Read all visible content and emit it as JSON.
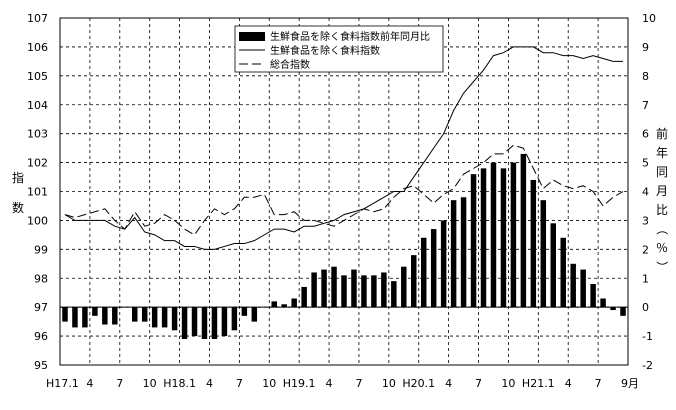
{
  "chart_data": {
    "type": "bar+line",
    "title": "",
    "y_left": {
      "label": "指数",
      "range": [
        95,
        107
      ],
      "ticks": [
        "95",
        "96",
        "97",
        "98",
        "99",
        "100",
        "101",
        "102",
        "103",
        "104",
        "105",
        "106",
        "107"
      ]
    },
    "y_right": {
      "label": "前年同月比（％）",
      "range": [
        -2,
        10
      ],
      "ticks": [
        "-2",
        "-1",
        "0",
        "1",
        "2",
        "3",
        "4",
        "5",
        "6",
        "7",
        "8",
        "9",
        "10"
      ]
    },
    "x_ticks": [
      "H17.1",
      "4",
      "7",
      "10",
      "H18.1",
      "4",
      "7",
      "10",
      "H19.1",
      "4",
      "7",
      "10",
      "H20.1",
      "4",
      "7",
      "10",
      "H21.1",
      "4",
      "7",
      "9月"
    ],
    "grid": true,
    "legend_position": "top-center",
    "series": [
      {
        "name": "生鮮食品を除く食料指数前年同月比",
        "type": "bar",
        "axis": "right",
        "values": [
          -0.5,
          -0.7,
          -0.7,
          -0.3,
          -0.6,
          -0.6,
          0,
          -0.5,
          -0.5,
          -0.7,
          -0.7,
          -0.8,
          -1.1,
          -1.0,
          -1.1,
          -1.1,
          -1.0,
          -0.8,
          -0.3,
          -0.5,
          0,
          0.2,
          0.1,
          0.3,
          0.7,
          1.2,
          1.3,
          1.4,
          1.1,
          1.3,
          1.1,
          1.1,
          1.2,
          0.9,
          1.4,
          1.8,
          2.4,
          2.7,
          3.0,
          3.7,
          3.8,
          4.6,
          4.8,
          5.0,
          4.8,
          5.0,
          5.3,
          4.4,
          3.7,
          2.9,
          2.4,
          1.5,
          1.3,
          0.8,
          0.3,
          -0.1,
          -0.3
        ]
      },
      {
        "name": "生鮮食品を除く食料指数",
        "type": "line",
        "axis": "left",
        "values": [
          100.2,
          100.0,
          100.0,
          100.0,
          100.0,
          99.8,
          99.7,
          100.1,
          99.6,
          99.5,
          99.3,
          99.3,
          99.1,
          99.1,
          99.0,
          99.0,
          99.1,
          99.2,
          99.2,
          99.3,
          99.5,
          99.7,
          99.7,
          99.6,
          99.8,
          99.8,
          99.9,
          100.0,
          100.2,
          100.3,
          100.4,
          100.6,
          100.8,
          101.0,
          101.0,
          101.5,
          102.0,
          102.5,
          103.0,
          103.8,
          104.4,
          104.8,
          105.2,
          105.7,
          105.8,
          106.0,
          106.0,
          106.0,
          105.8,
          105.8,
          105.7,
          105.7,
          105.6,
          105.7,
          105.6,
          105.5,
          105.5
        ]
      },
      {
        "name": "総合指数",
        "type": "line",
        "style": "dashed",
        "axis": "left",
        "values": [
          100.2,
          100.1,
          100.2,
          100.3,
          100.4,
          100.0,
          99.7,
          100.3,
          99.8,
          99.9,
          100.2,
          100.0,
          99.7,
          99.5,
          100.0,
          100.4,
          100.2,
          100.4,
          100.8,
          100.8,
          100.9,
          100.2,
          100.2,
          100.3,
          100.0,
          100.0,
          99.9,
          99.8,
          100.0,
          100.2,
          100.4,
          100.3,
          100.4,
          100.8,
          101.1,
          101.2,
          100.9,
          100.6,
          100.9,
          101.1,
          101.6,
          101.8,
          102.0,
          102.3,
          102.3,
          102.6,
          102.5,
          101.8,
          101.1,
          101.4,
          101.2,
          101.1,
          101.2,
          101.0,
          100.5,
          100.8,
          101.0
        ]
      }
    ]
  }
}
